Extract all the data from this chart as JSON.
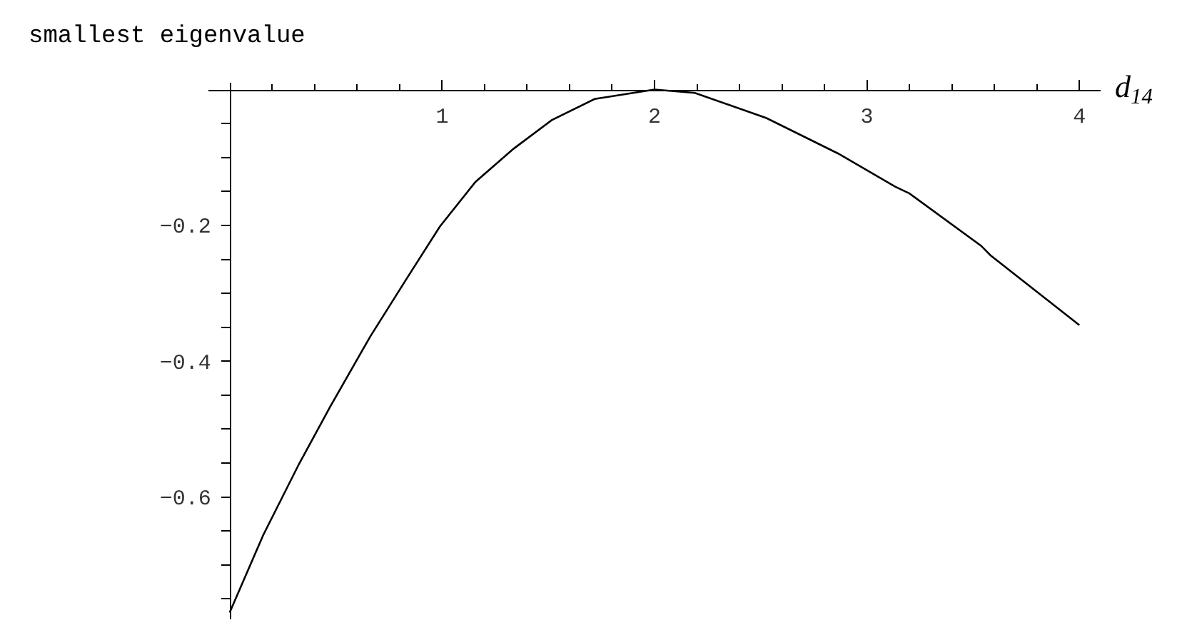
{
  "chart_data": {
    "type": "line",
    "title": "smallest eigenvalue",
    "xlabel": "d$_{14}$",
    "x": [
      0,
      0.158,
      0.327,
      0.473,
      0.663,
      0.832,
      0.989,
      1.157,
      1.337,
      1.516,
      1.718,
      2,
      2.19,
      2.527,
      2.863,
      3.133,
      3.2,
      3.537,
      3.581,
      4
    ],
    "series": [
      {
        "color": "#000000",
        "values": [
          -0.77,
          -0.656,
          -0.551,
          -0.467,
          -0.363,
          -0.279,
          -0.202,
          -0.136,
          -0.087,
          -0.045,
          -0.014,
          0,
          -0.005,
          -0.042,
          -0.094,
          -0.143,
          -0.153,
          -0.23,
          -0.244,
          -0.347
        ]
      }
    ],
    "xlim": [
      -0.1,
      4.1
    ],
    "ylim": [
      -0.78,
      0.01
    ],
    "xticks": [
      {
        "value": 0.2,
        "label": null
      },
      {
        "value": 0.4,
        "label": null
      },
      {
        "value": 0.6,
        "label": null
      },
      {
        "value": 0.8,
        "label": null
      },
      1,
      {
        "value": 1.2,
        "label": null
      },
      {
        "value": 1.4,
        "label": null
      },
      {
        "value": 1.6,
        "label": null
      },
      {
        "value": 1.8,
        "label": null
      },
      2,
      {
        "value": 2.2,
        "label": null
      },
      {
        "value": 2.4,
        "label": null
      },
      {
        "value": 2.6,
        "label": null
      },
      {
        "value": 2.8,
        "label": null
      },
      3,
      {
        "value": 3.2,
        "label": null
      },
      {
        "value": 3.4,
        "label": null
      },
      {
        "value": 3.6,
        "label": null
      },
      {
        "value": 3.8,
        "label": null
      },
      4
    ],
    "yticks": [
      {
        "value": -0.75,
        "label": null
      },
      {
        "value": -0.7,
        "label": null
      },
      {
        "value": -0.65,
        "label": null
      },
      -0.6,
      {
        "value": -0.55,
        "label": null
      },
      {
        "value": -0.5,
        "label": null
      },
      {
        "value": -0.45,
        "label": null
      },
      -0.4,
      {
        "value": -0.35,
        "label": null
      },
      {
        "value": -0.3,
        "label": null
      },
      {
        "value": -0.25,
        "label": null
      },
      -0.2,
      {
        "value": -0.15,
        "label": null
      },
      {
        "value": -0.1,
        "label": null
      },
      {
        "value": -0.05,
        "label": null
      }
    ],
    "grid": false,
    "marker": "none",
    "line_style": "solid"
  }
}
